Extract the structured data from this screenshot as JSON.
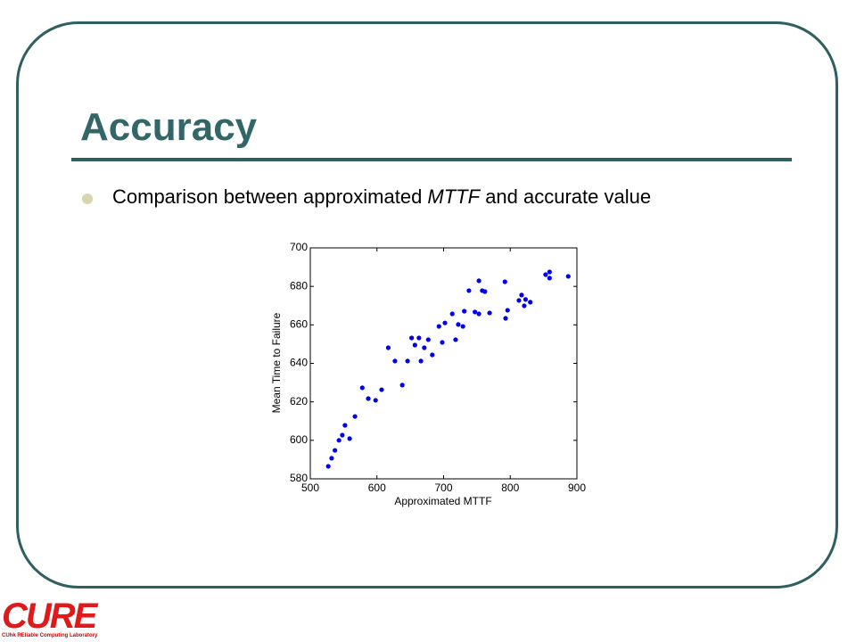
{
  "slide": {
    "title": "Accuracy",
    "bullet": [
      "Comparison between approximated ",
      "MTTF",
      " and accurate value"
    ]
  },
  "logo": {
    "name": "CURE",
    "subtitle": "CUhk REliable Computing Laboratory"
  },
  "chart_data": {
    "type": "scatter",
    "xlabel": "Approximated MTTF",
    "ylabel": "Mean Time to Failure",
    "color": "#0000ee",
    "x": [
      527,
      532,
      537,
      543,
      548,
      552,
      559,
      567,
      578,
      587,
      598,
      607,
      617,
      627,
      638,
      646,
      652,
      657,
      663,
      666,
      671,
      677,
      683,
      693,
      698,
      702,
      713,
      718,
      722,
      729,
      731,
      738,
      747,
      753,
      753,
      758,
      762,
      769,
      792,
      793,
      796,
      813,
      817,
      821,
      823,
      830,
      853,
      859,
      859,
      887
    ],
    "y": [
      586.5,
      590.7,
      594.8,
      600,
      602.7,
      607.8,
      600.9,
      612.4,
      627.3,
      621.7,
      620.8,
      626.3,
      648.1,
      641.2,
      628.7,
      641.2,
      653.2,
      649.5,
      653.2,
      641.2,
      648.1,
      652.3,
      644.4,
      659.2,
      650.9,
      661,
      665.7,
      652.3,
      660.2,
      659.2,
      667.1,
      677.8,
      666.7,
      682.9,
      665.7,
      677.8,
      677.3,
      666.2,
      682.4,
      663.4,
      667.6,
      672.7,
      675.5,
      669.9,
      673.2,
      671.8,
      686.1,
      687.5,
      684.3,
      685.2
    ],
    "xlim": [
      500,
      900
    ],
    "xticks": [
      500,
      600,
      700,
      800,
      900
    ],
    "ylim": [
      580,
      700
    ],
    "yticks": [
      580,
      600,
      620,
      640,
      660,
      680,
      700
    ]
  }
}
